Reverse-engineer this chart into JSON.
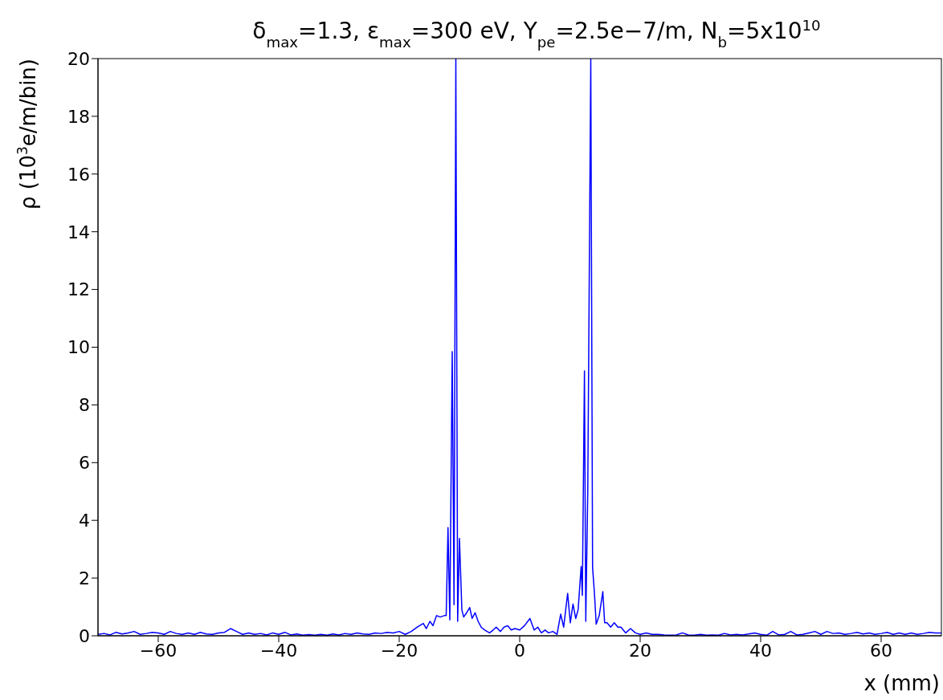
{
  "chart_data": {
    "type": "line",
    "title": "δ$_{max}$=1.3, ε$_{max}$=300 eV, Y$_{pe}$=2.5e−7/m, N$_{b}$=5x10$^{10}$",
    "xlabel": "x (mm)",
    "ylabel": "ρ (10$^{3}$e/m/bin)",
    "x": [
      -70,
      -69,
      -68,
      -67,
      -66,
      -65,
      -64,
      -63,
      -62,
      -61,
      -60,
      -59,
      -58,
      -57,
      -56,
      -55,
      -54,
      -53,
      -52,
      -51,
      -50,
      -49,
      -48,
      -47,
      -46,
      -45,
      -44,
      -43,
      -42,
      -41,
      -40,
      -39,
      -38,
      -37,
      -36,
      -35,
      -34,
      -33,
      -32,
      -31,
      -30,
      -29,
      -28,
      -27,
      -26,
      -25,
      -24,
      -23,
      -22,
      -21,
      -20,
      -19,
      -18,
      -17,
      -16,
      -15.5,
      -14.9,
      -14.4,
      -13.8,
      -13.2,
      -12.5,
      -12.2,
      -11.9,
      -11.6,
      -11.2,
      -10.9,
      -10.6,
      -10.3,
      -10,
      -9.6,
      -9.3,
      -8.8,
      -8.3,
      -7.9,
      -7.4,
      -6.9,
      -6.4,
      -5.8,
      -5,
      -4.4,
      -3.9,
      -3.2,
      -2.6,
      -2,
      -1.4,
      -0.8,
      0,
      0.8,
      1.7,
      2.4,
      3,
      3.6,
      4.2,
      4.8,
      5.5,
      6.2,
      6.8,
      7.3,
      7.96,
      8.4,
      8.85,
      9.3,
      9.7,
      10.2,
      10.4,
      10.75,
      10.97,
      11.3,
      11.8,
      12.1,
      12.4,
      12.7,
      13.2,
      13.8,
      14.1,
      14.5,
      15.1,
      15.7,
      16.3,
      16.8,
      17.6,
      18.4,
      19.2,
      20,
      21,
      22,
      23,
      24,
      25,
      26,
      27,
      28,
      29,
      30,
      31,
      32,
      33,
      34,
      35,
      36,
      37,
      38,
      39,
      40,
      41,
      42,
      43,
      44,
      45,
      46,
      47,
      48,
      49,
      50,
      51,
      52,
      53,
      54,
      55,
      56,
      57,
      58,
      59,
      60,
      61,
      62,
      63,
      64,
      65,
      66,
      67,
      68,
      69,
      70
    ],
    "series": [
      {
        "color": "#0000ff",
        "values": [
          0.05,
          0.08,
          0.03,
          0.12,
          0.06,
          0.1,
          0.15,
          0.05,
          0.08,
          0.12,
          0.1,
          0.05,
          0.15,
          0.08,
          0.05,
          0.1,
          0.05,
          0.12,
          0.06,
          0.05,
          0.1,
          0.12,
          0.25,
          0.15,
          0.05,
          0.1,
          0.05,
          0.08,
          0.03,
          0.1,
          0.05,
          0.12,
          0.03,
          0.06,
          0.02,
          0.04,
          0.02,
          0.05,
          0.02,
          0.06,
          0.03,
          0.08,
          0.05,
          0.1,
          0.06,
          0.05,
          0.1,
          0.08,
          0.12,
          0.1,
          0.15,
          0.05,
          0.15,
          0.3,
          0.43,
          0.25,
          0.5,
          0.35,
          0.7,
          0.65,
          0.7,
          0.7,
          3.75,
          0.55,
          9.85,
          1.08,
          20,
          0.5,
          3.37,
          0.9,
          0.65,
          0.8,
          0.98,
          0.6,
          0.8,
          0.5,
          0.3,
          0.2,
          0.1,
          0.2,
          0.3,
          0.15,
          0.3,
          0.35,
          0.2,
          0.25,
          0.2,
          0.35,
          0.6,
          0.2,
          0.3,
          0.1,
          0.2,
          0.1,
          0.15,
          0.05,
          0.75,
          0.3,
          1.47,
          0.45,
          1.1,
          0.6,
          0.9,
          2.4,
          1.4,
          9.18,
          0.5,
          5,
          20,
          2.36,
          1.5,
          0.4,
          0.7,
          1.53,
          0.45,
          0.45,
          0.3,
          0.45,
          0.3,
          0.3,
          0.1,
          0.25,
          0.1,
          0.05,
          0.1,
          0.05,
          0.05,
          0.03,
          0.02,
          0.03,
          0.1,
          0.03,
          0.02,
          0.05,
          0.02,
          0.03,
          0.02,
          0.08,
          0.03,
          0.05,
          0.03,
          0.06,
          0.1,
          0.05,
          0.02,
          0.15,
          0.03,
          0.05,
          0.15,
          0.03,
          0.05,
          0.1,
          0.15,
          0.05,
          0.15,
          0.08,
          0.1,
          0.05,
          0.08,
          0.12,
          0.06,
          0.1,
          0.05,
          0.08,
          0.12,
          0.05,
          0.1,
          0.05,
          0.1,
          0.05,
          0.08,
          0.12,
          0.1,
          0.1
        ]
      }
    ],
    "xlim": [
      -70,
      70
    ],
    "xticks": [
      -60,
      -40,
      -20,
      0,
      20,
      40,
      60
    ],
    "ylim": [
      0,
      20
    ],
    "yticks": [
      0,
      2,
      4,
      6,
      8,
      10,
      12,
      14,
      16,
      18,
      20
    ],
    "grid": false,
    "legend": false,
    "marker": "none",
    "line_style": "solid"
  }
}
